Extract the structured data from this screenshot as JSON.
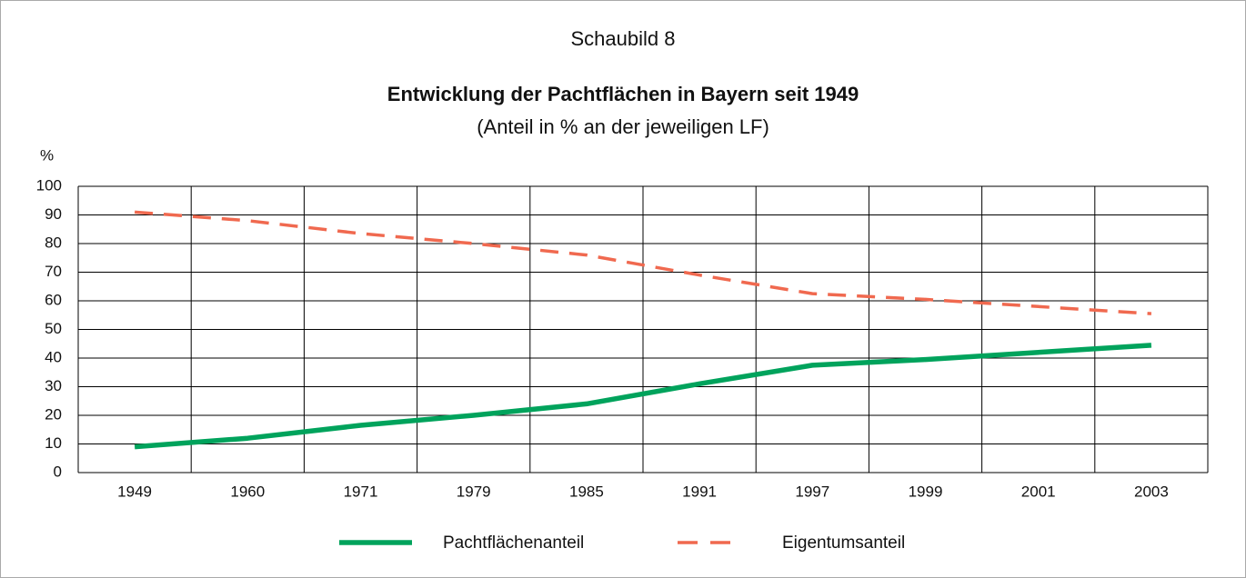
{
  "chart_data": {
    "type": "line",
    "figure_label": "Schaubild 8",
    "title": "Entwicklung der Pachtflächen in Bayern seit 1949",
    "subtitle": "(Anteil in % an der jeweiligen LF)",
    "y_axis_label": "%",
    "categories": [
      "1949",
      "1960",
      "1971",
      "1979",
      "1985",
      "1991",
      "1997",
      "1999",
      "2001",
      "2003"
    ],
    "series": [
      {
        "name": "Pachtflächenanteil",
        "color": "#00a35c",
        "dash": false,
        "values": [
          9,
          12,
          16.5,
          20,
          24,
          31,
          37.5,
          39.5,
          42,
          44.5
        ]
      },
      {
        "name": "Eigentumsanteil",
        "color": "#f0694f",
        "dash": true,
        "values": [
          91,
          88,
          83.5,
          80,
          76,
          69,
          62.5,
          60.5,
          58,
          55.5
        ]
      }
    ],
    "ylim": [
      0,
      100
    ],
    "yticks": [
      0,
      10,
      20,
      30,
      40,
      50,
      60,
      70,
      80,
      90,
      100
    ],
    "grid": true,
    "legend": "bottom"
  }
}
